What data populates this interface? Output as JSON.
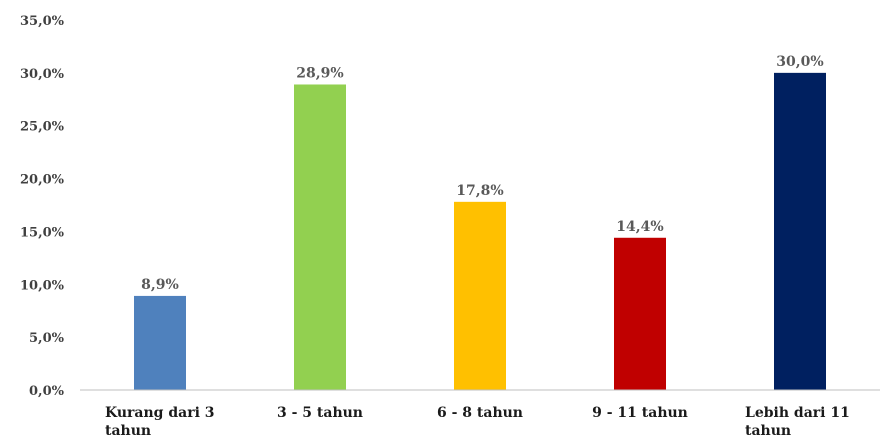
{
  "chart_data": {
    "type": "bar",
    "categories": [
      "Kurang dari 3 tahun",
      "3 - 5 tahun",
      "6 - 8 tahun",
      "9 - 11 tahun",
      "Lebih dari 11 tahun"
    ],
    "category_lines": [
      [
        "Kurang dari 3",
        "tahun"
      ],
      [
        "3 - 5 tahun"
      ],
      [
        "6 - 8 tahun"
      ],
      [
        "9 - 11 tahun"
      ],
      [
        "Lebih dari 11",
        "tahun"
      ]
    ],
    "values": [
      8.9,
      28.9,
      17.8,
      14.4,
      30.0
    ],
    "data_labels": [
      "8,9%",
      "28,9%",
      "17,8%",
      "14,4%",
      "30,0%"
    ],
    "colors": [
      "#4F81BD",
      "#92D050",
      "#FFC000",
      "#C00000",
      "#002060"
    ],
    "ylim": [
      0,
      35
    ],
    "yticks": [
      0,
      5,
      10,
      15,
      20,
      25,
      30,
      35
    ],
    "ytick_labels": [
      "0,0%",
      "5,0%",
      "10,0%",
      "15,0%",
      "20,0%",
      "25,0%",
      "30,0%",
      "35,0%"
    ],
    "title": "",
    "xlabel": "",
    "ylabel": "",
    "grid": false,
    "legend": "none"
  }
}
